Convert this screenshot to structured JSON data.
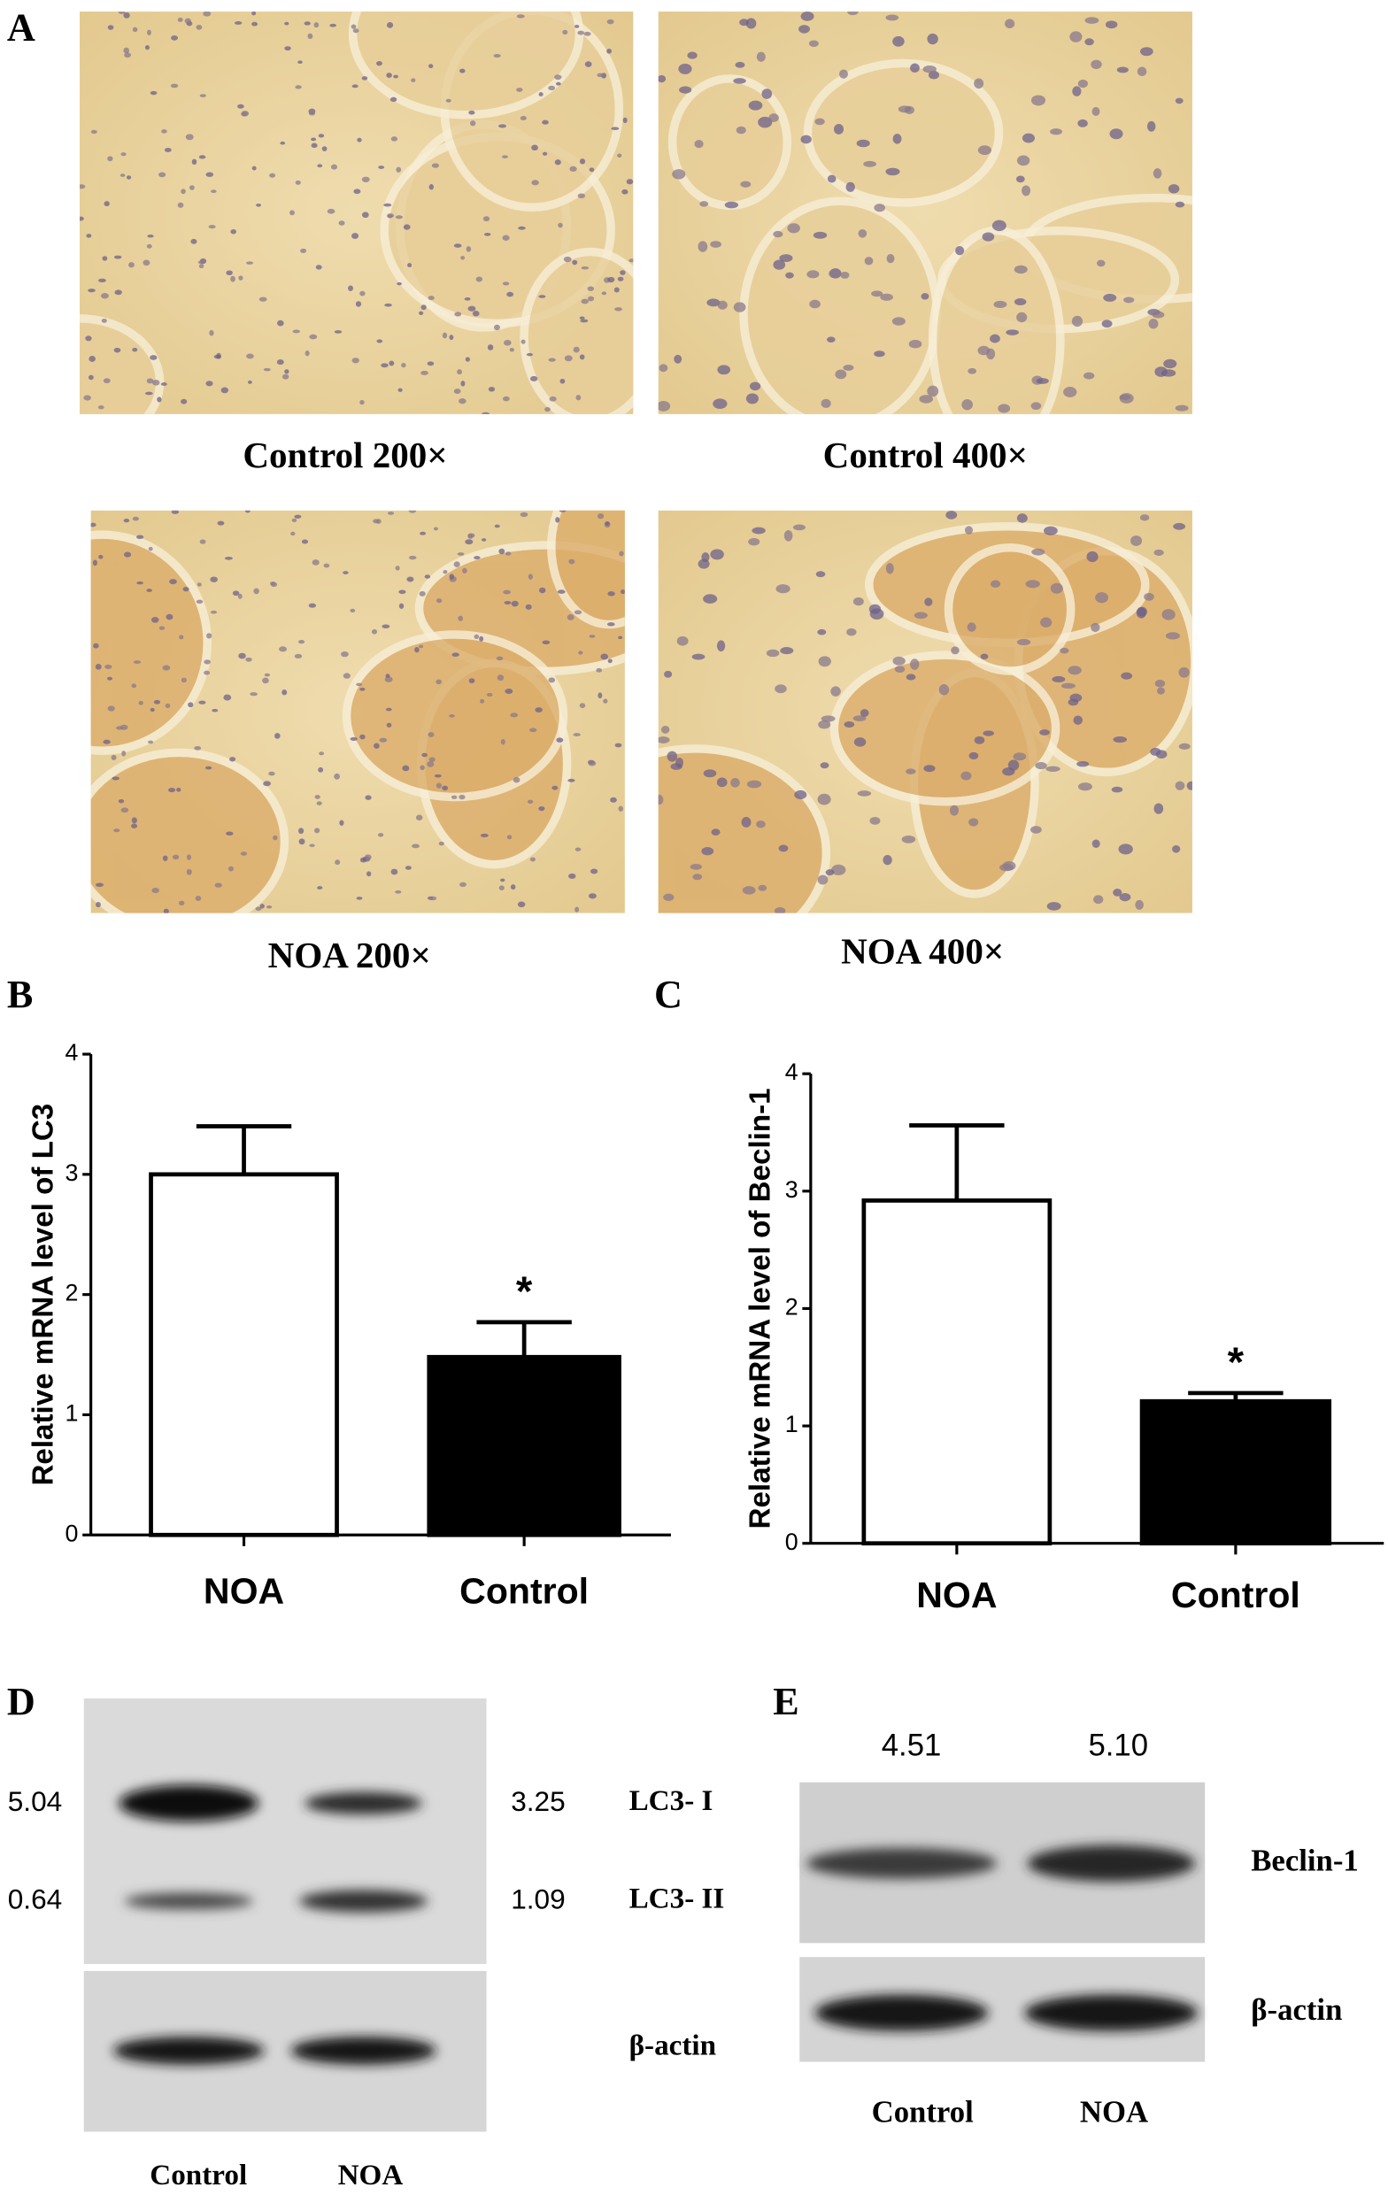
{
  "panel_labels": [
    "A",
    "B",
    "C",
    "D",
    "E"
  ],
  "histology": [
    "Control 200×",
    "Control 400×",
    "NOA 200×",
    "NOA 400×"
  ],
  "chart_data": [
    {
      "type": "bar",
      "y_label": "Relative mRNA level of LC3",
      "categories": [
        "NOA",
        "Control"
      ],
      "values": [
        3.0,
        1.48
      ],
      "errors": [
        0.4,
        0.29
      ],
      "colors": [
        "#ffffff",
        "#000000"
      ],
      "significance": [
        null,
        "*"
      ],
      "ylim": [
        0,
        4
      ],
      "yticks": [
        0,
        1,
        2,
        3,
        4
      ]
    },
    {
      "type": "bar",
      "y_label": "Relative mRNA level of Beclin-1",
      "categories": [
        "NOA",
        "Control"
      ],
      "values": [
        2.92,
        1.21
      ],
      "errors": [
        0.64,
        0.07
      ],
      "colors": [
        "#ffffff",
        "#000000"
      ],
      "significance": [
        null,
        "*"
      ],
      "ylim": [
        0,
        4
      ],
      "yticks": [
        0,
        1,
        2,
        3,
        4
      ]
    }
  ],
  "blot_d": {
    "left_values": [
      "5.04",
      "0.64"
    ],
    "right_values": [
      "3.25",
      "1.09"
    ],
    "bands": [
      "LC3- I",
      "LC3- II",
      "β-actin"
    ],
    "lanes": [
      "Control",
      "NOA"
    ]
  },
  "blot_e": {
    "values": [
      "4.51",
      "5.10"
    ],
    "bands": [
      "Beclin-1",
      "β-actin"
    ],
    "lanes": [
      "Control",
      "NOA"
    ]
  }
}
